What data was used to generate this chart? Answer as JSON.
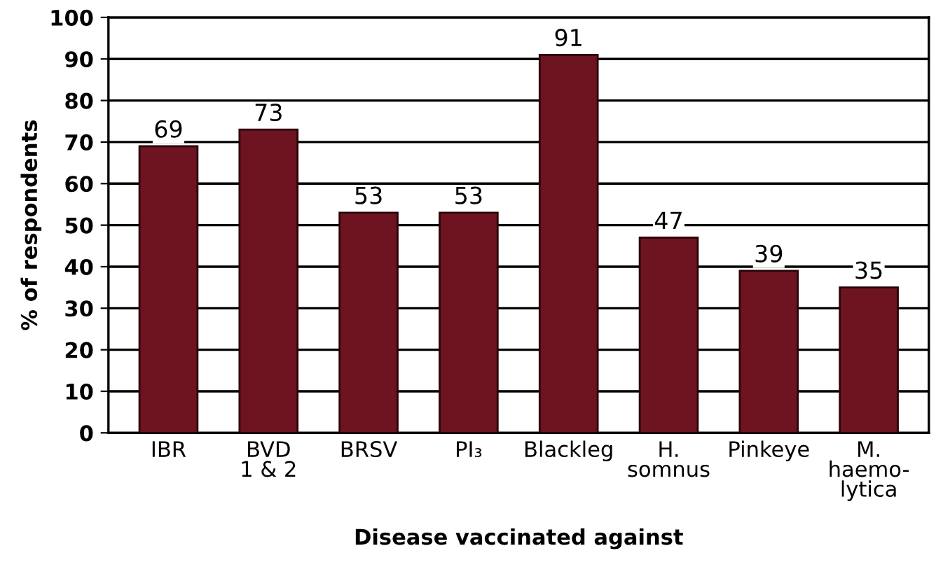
{
  "chart_data": {
    "type": "bar",
    "xlabel": "Disease vaccinated against",
    "ylabel": "% of respondents",
    "categories": [
      "IBR",
      "BVD\n1 & 2",
      "BRSV",
      "PI₃",
      "Blackleg",
      "H.\nsomnus",
      "Pinkeye",
      "M.\nhaemo-\nlytica"
    ],
    "values": [
      69,
      73,
      53,
      53,
      91,
      47,
      39,
      35
    ],
    "color": "#6e1320",
    "ylim": [
      0,
      100
    ],
    "yticks": [
      0,
      10,
      20,
      30,
      40,
      50,
      60,
      70,
      80,
      90,
      100
    ],
    "grid": "y",
    "data_labels": true
  }
}
